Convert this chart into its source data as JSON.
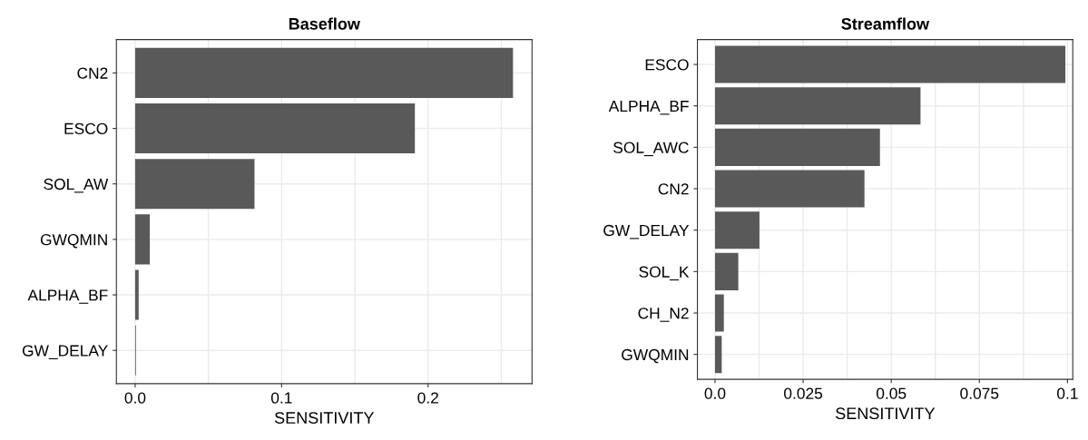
{
  "chart_data": [
    {
      "type": "bar",
      "orientation": "horizontal",
      "title": "Baseflow",
      "xlabel": "SENSITIVITY",
      "categories": [
        "CN2",
        "ESCO",
        "SOL_AW",
        "GWQMIN",
        "ALPHA_BF",
        "GW_DELAY"
      ],
      "values": [
        0.258,
        0.191,
        0.0815,
        0.01,
        0.0024,
        0.0005
      ],
      "color": "#595959",
      "xlim": [
        -0.0128,
        0.271
      ],
      "xticks": [
        {
          "value": 0,
          "label": "0.0"
        },
        {
          "value": 0.05,
          "label": null
        },
        0.1,
        {
          "value": 0.15,
          "label": null
        },
        0.2,
        {
          "value": 0.25,
          "label": null
        }
      ],
      "grid": true
    },
    {
      "type": "bar",
      "orientation": "horizontal",
      "title": "Streamflow",
      "xlabel": "SENSITIVITY",
      "categories": [
        "ESCO",
        "ALPHA_BF",
        "SOL_AWC",
        "CN2",
        "GW_DELAY",
        "SOL_K",
        "CH_N2",
        "GWQMIN"
      ],
      "values": [
        0.0994,
        0.0583,
        0.0468,
        0.0424,
        0.0126,
        0.0066,
        0.0025,
        0.0019
      ],
      "color": "#595959",
      "xlim": [
        -0.005,
        0.1015
      ],
      "xticks": [
        {
          "value": 0,
          "label": "0.0"
        },
        {
          "value": 0.0125,
          "label": null
        },
        0.025,
        {
          "value": 0.0375,
          "label": null
        },
        0.05,
        {
          "value": 0.0625,
          "label": null
        },
        0.075,
        {
          "value": 0.0875,
          "label": null
        },
        0.1
      ],
      "grid": true
    }
  ]
}
